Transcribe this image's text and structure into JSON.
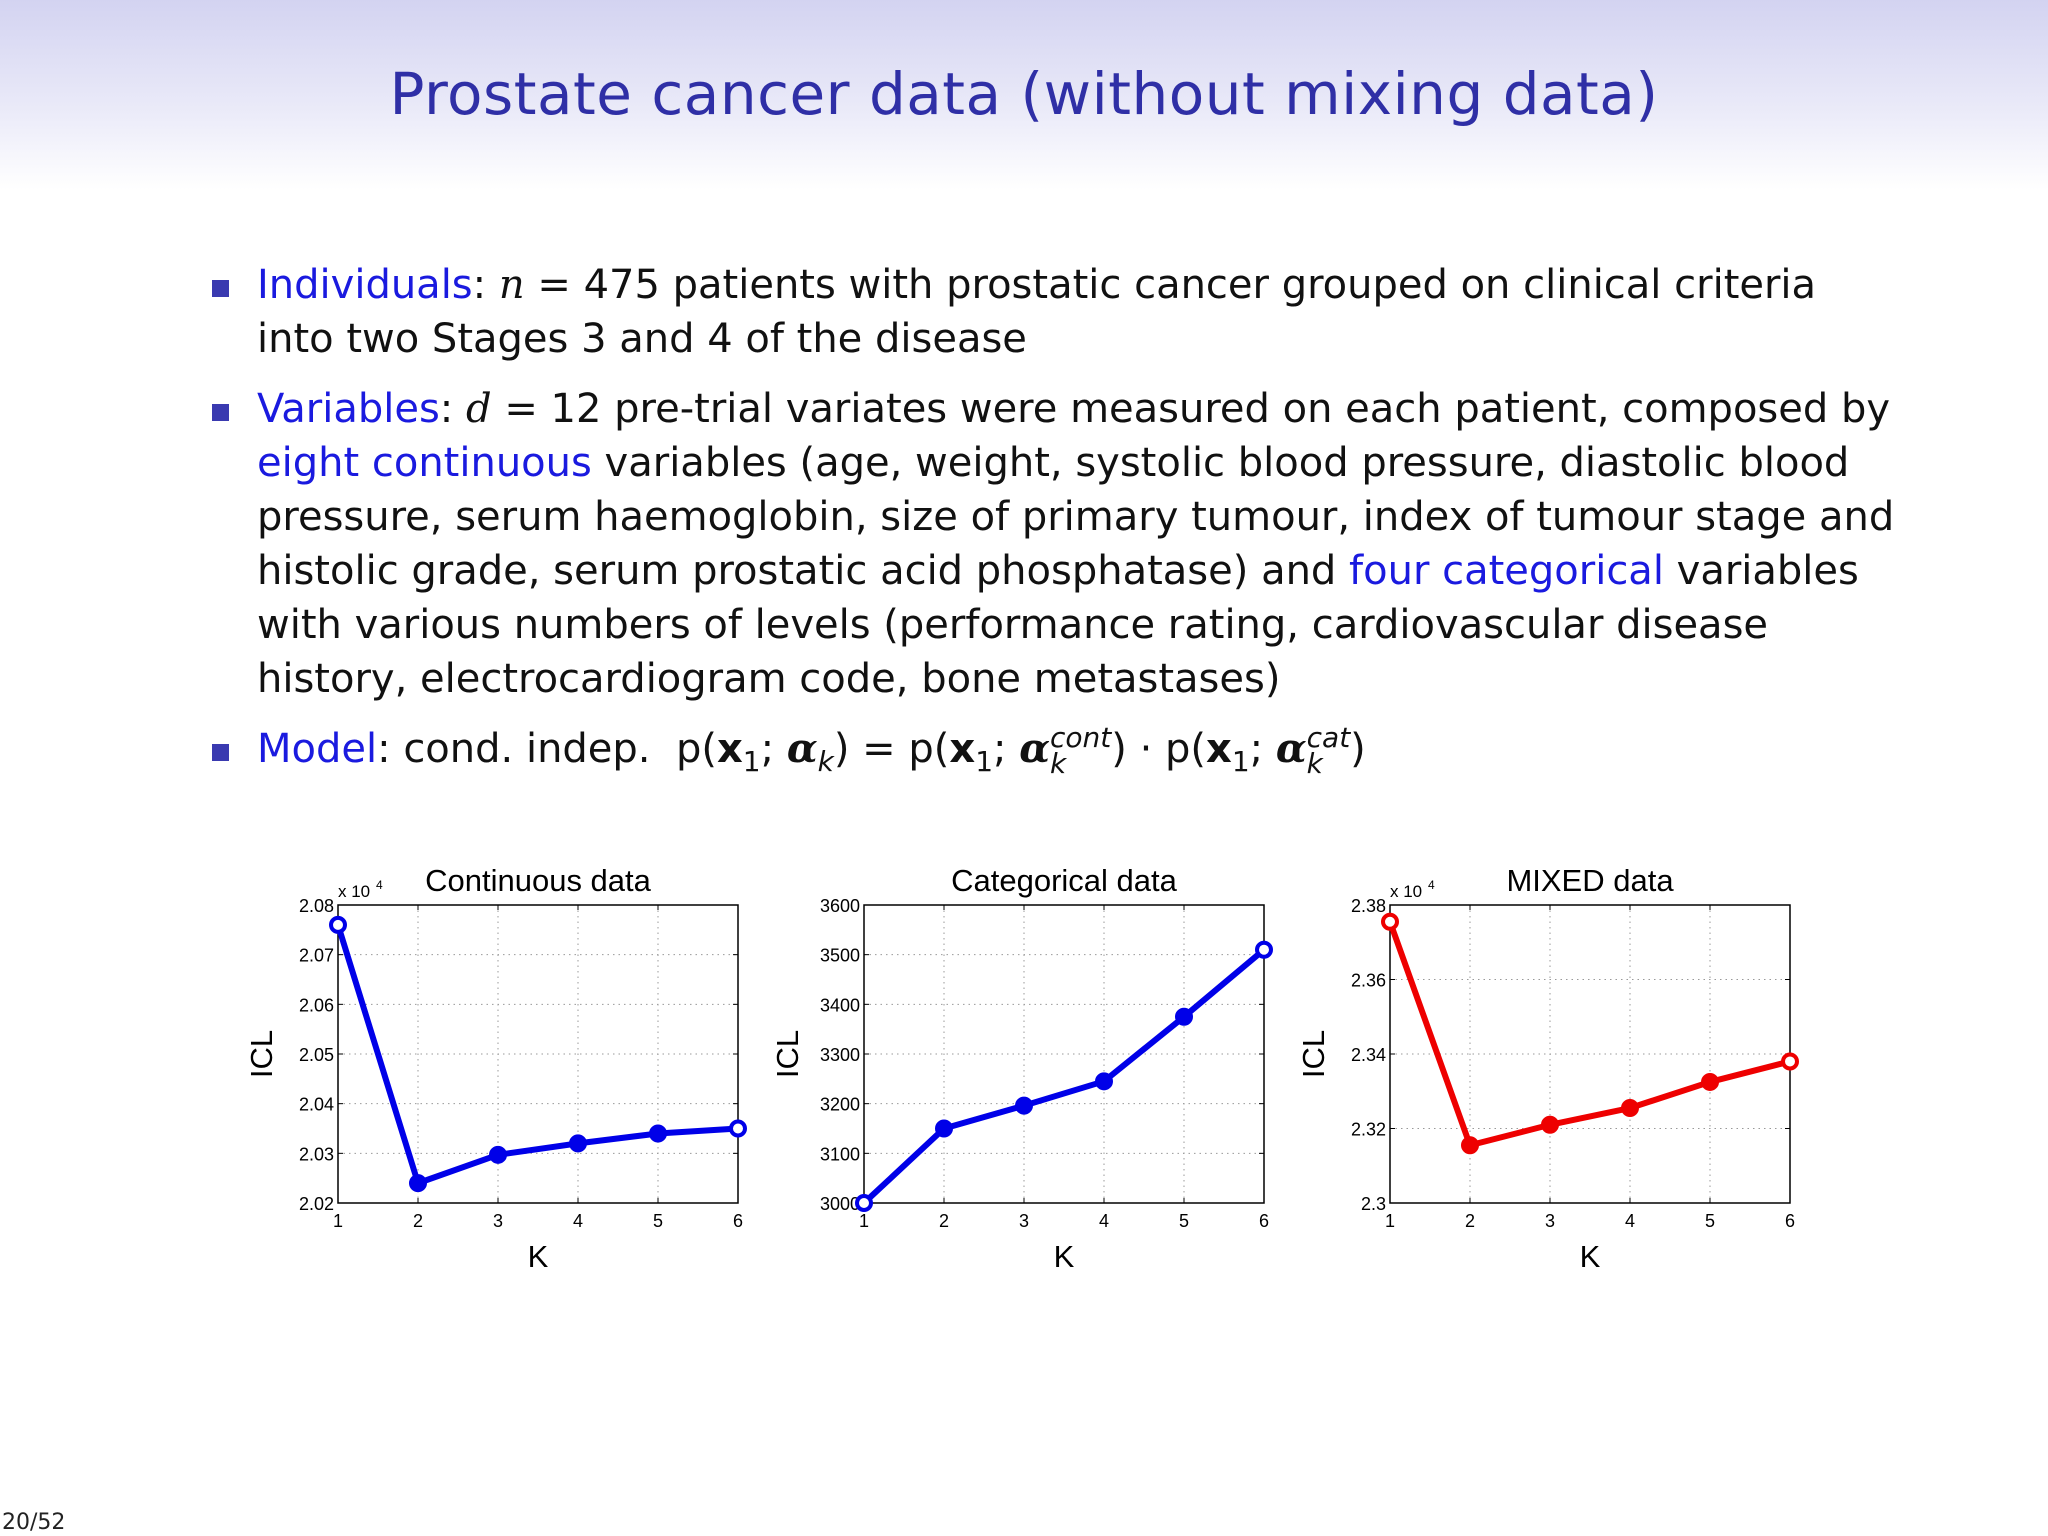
{
  "slide": {
    "title": "Prostate cancer data (without mixing data)",
    "page": "20/52"
  },
  "bullets": {
    "b1": {
      "label": "Individuals",
      "colon": ": ",
      "var": "n",
      "eq": " = 475 patients with prostatic cancer grouped on clinical criteria",
      "line2": "into two Stages 3 and 4 of the disease"
    },
    "b2": {
      "label": "Variables",
      "colon": ": ",
      "var": "d",
      "eq": " = 12 pre-trial variates were measured on each patient, composed by",
      "highlight1": "eight continuous",
      "text2": " variables (age, weight, systolic blood pressure, diastolic blood pressure, serum haemoglobin, size of primary tumour, index of tumour stage and histolic grade, serum prostatic acid phosphatase) and ",
      "highlight2": "four categorical",
      "text3": " variables with various numbers of levels (performance rating, cardiovascular disease history, electrocardiogram code, bone metastases)"
    },
    "b3": {
      "label": "Model",
      "colon": ": ",
      "text": "cond. indep.",
      "p": "p(",
      "x": "x",
      "one": "1",
      "semi": "; ",
      "alpha": "α",
      "k": "k",
      "close": ")",
      "equals": " = ",
      "cont": "cont",
      "dot": " · ",
      "cat": "cat"
    }
  },
  "chart_data": [
    {
      "type": "line",
      "title": "Continuous data",
      "xlabel": "K",
      "ylabel": "ICL",
      "y_multiplier": "x 10",
      "y_multiplier_exp": "4",
      "x": [
        1,
        2,
        3,
        4,
        5,
        6
      ],
      "y": [
        2.076,
        2.024,
        2.0297,
        2.032,
        2.034,
        2.035
      ],
      "xlim": [
        1,
        6
      ],
      "ylim": [
        2.02,
        2.08
      ],
      "yticks": [
        2.02,
        2.03,
        2.04,
        2.05,
        2.06,
        2.07,
        2.08
      ],
      "ytick_labels": [
        "2.02",
        "2.03",
        "2.04",
        "2.05",
        "2.06",
        "2.07",
        "2.08"
      ],
      "xtick_labels": [
        "1",
        "2",
        "3",
        "4",
        "5",
        "6"
      ],
      "color": "#0000e8",
      "grid": true
    },
    {
      "type": "line",
      "title": "Categorical data",
      "xlabel": "K",
      "ylabel": "ICL",
      "x": [
        1,
        2,
        3,
        4,
        5,
        6
      ],
      "y": [
        3000,
        3150,
        3196,
        3245,
        3375,
        3510
      ],
      "xlim": [
        1,
        6
      ],
      "ylim": [
        3000,
        3600
      ],
      "yticks": [
        3000,
        3100,
        3200,
        3300,
        3400,
        3500,
        3600
      ],
      "ytick_labels": [
        "3000",
        "3100",
        "3200",
        "3300",
        "3400",
        "3500",
        "3600"
      ],
      "xtick_labels": [
        "1",
        "2",
        "3",
        "4",
        "5",
        "6"
      ],
      "color": "#0000e8",
      "grid": true
    },
    {
      "type": "line",
      "title": "MIXED data",
      "xlabel": "K",
      "ylabel": "ICL",
      "y_multiplier": "x 10",
      "y_multiplier_exp": "4",
      "x": [
        1,
        2,
        3,
        4,
        5,
        6
      ],
      "y": [
        2.3755,
        2.3155,
        2.321,
        2.3255,
        2.3325,
        2.338
      ],
      "xlim": [
        1,
        6
      ],
      "ylim": [
        2.3,
        2.38
      ],
      "yticks": [
        2.3,
        2.32,
        2.34,
        2.36,
        2.38
      ],
      "ytick_labels": [
        "2.3",
        "2.32",
        "2.34",
        "2.36",
        "2.38"
      ],
      "xtick_labels": [
        "1",
        "2",
        "3",
        "4",
        "5",
        "6"
      ],
      "color": "#ee0000",
      "grid": true
    }
  ]
}
